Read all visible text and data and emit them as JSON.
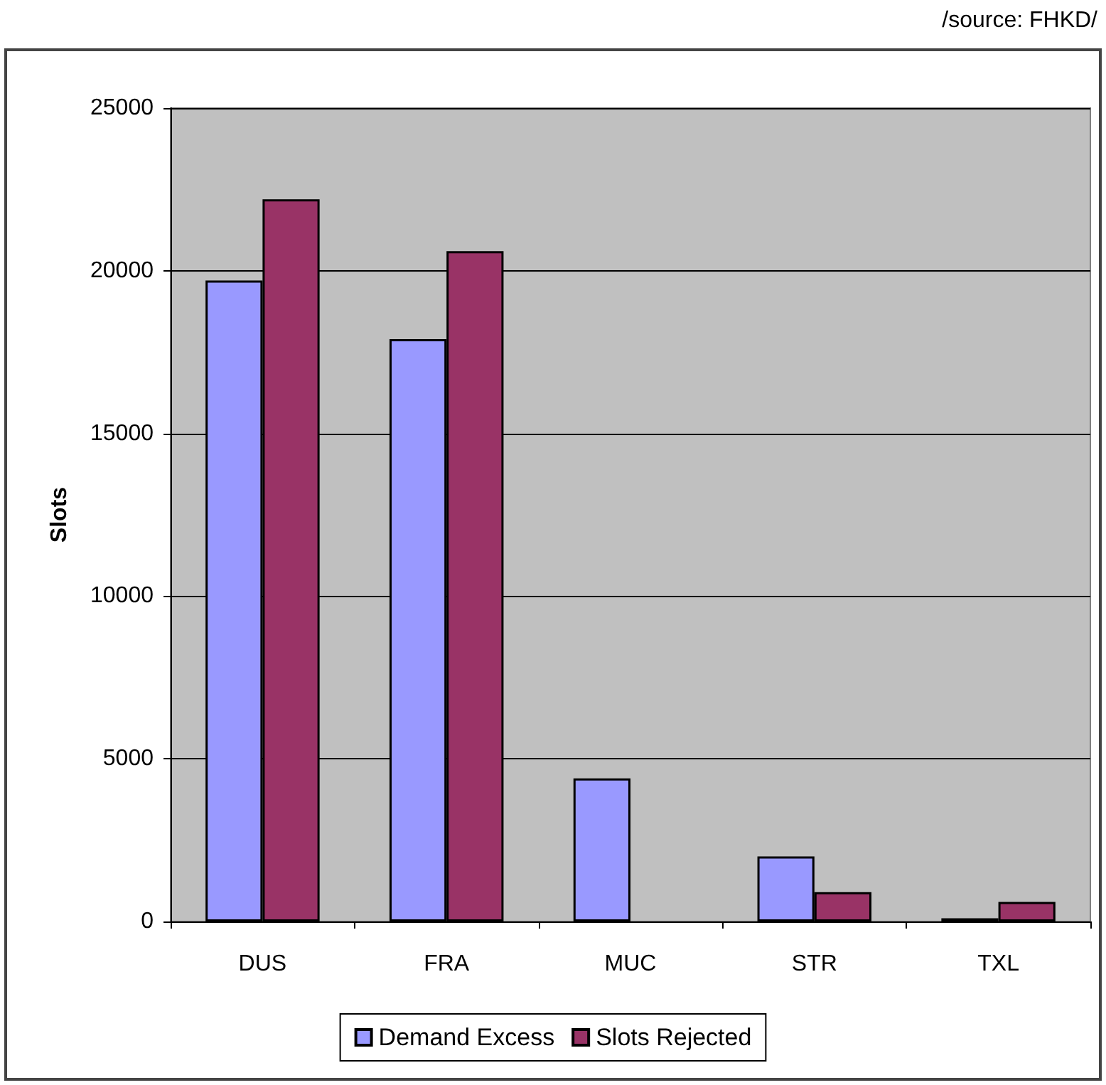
{
  "chart_data": {
    "type": "bar",
    "ylabel": "Slots",
    "annotations": [
      "/source: FHKD/"
    ],
    "categories": [
      "DUS",
      "FRA",
      "MUC",
      "STR",
      "TXL"
    ],
    "series": [
      {
        "name": "Demand Excess",
        "color": "#9999ff",
        "values": [
          19700,
          17900,
          4400,
          2000,
          100
        ]
      },
      {
        "name": "Slots Rejected",
        "color": "#993366",
        "values": [
          22200,
          20600,
          null,
          900,
          600
        ]
      }
    ],
    "ylim": [
      0,
      25000
    ],
    "yticks": [
      0,
      5000,
      10000,
      15000,
      20000,
      25000
    ],
    "grid": "y",
    "legend": "bottom"
  }
}
